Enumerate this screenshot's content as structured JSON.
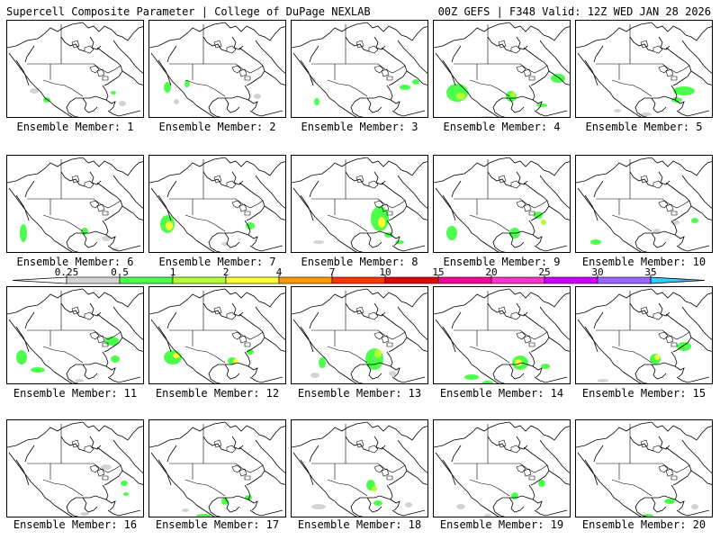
{
  "header": {
    "title": "Supercell Composite Parameter | College of DuPage NEXLAB",
    "run_info": "00Z GEFS | F348 Valid: 12Z WED JAN 28 2026"
  },
  "legend": {
    "thresholds": [
      "0.25",
      "0.5",
      "1",
      "2",
      "4",
      "7",
      "10",
      "15",
      "20",
      "25",
      "30",
      "35"
    ],
    "colors": [
      "#d3d3d3",
      "#4cff4c",
      "#b4ff33",
      "#ffff33",
      "#ff9900",
      "#ff3300",
      "#e60000",
      "#ff0099",
      "#ff33cc",
      "#cc00ff",
      "#9966ff",
      "#33ccff"
    ]
  },
  "panels": [
    {
      "label": "Ensemble Member: 1"
    },
    {
      "label": "Ensemble Member: 2"
    },
    {
      "label": "Ensemble Member: 3"
    },
    {
      "label": "Ensemble Member: 4"
    },
    {
      "label": "Ensemble Member: 5"
    },
    {
      "label": "Ensemble Member: 6"
    },
    {
      "label": "Ensemble Member: 7"
    },
    {
      "label": "Ensemble Member: 8"
    },
    {
      "label": "Ensemble Member: 9"
    },
    {
      "label": "Ensemble Member: 10"
    },
    {
      "label": "Ensemble Member: 11"
    },
    {
      "label": "Ensemble Member: 12"
    },
    {
      "label": "Ensemble Member: 13"
    },
    {
      "label": "Ensemble Member: 14"
    },
    {
      "label": "Ensemble Member: 15"
    },
    {
      "label": "Ensemble Member: 16"
    },
    {
      "label": "Ensemble Member: 17"
    },
    {
      "label": "Ensemble Member: 18"
    },
    {
      "label": "Ensemble Member: 19"
    },
    {
      "label": "Ensemble Member: 20"
    }
  ]
}
